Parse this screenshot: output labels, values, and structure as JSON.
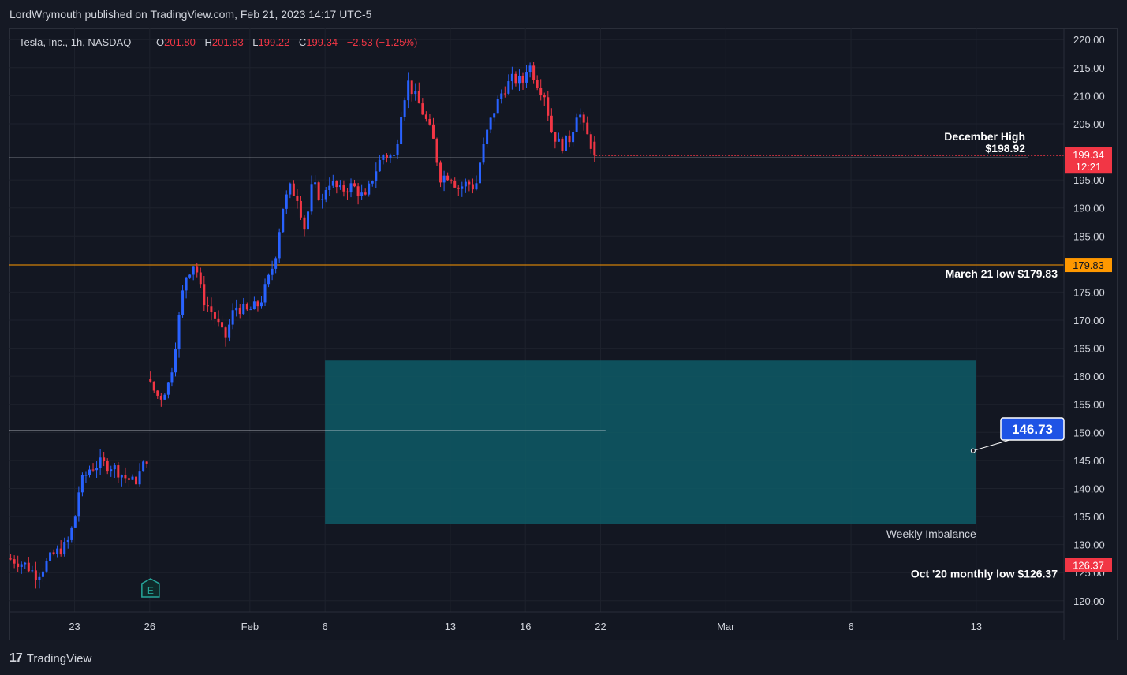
{
  "header": {
    "published": "LordWrymouth published on TradingView.com, Feb 21, 2023 14:17 UTC-5"
  },
  "footer": {
    "logo_mark": "17",
    "brand": "TradingView"
  },
  "colors": {
    "background": "#131722",
    "grid": "#1e222d",
    "up": "#2962ff",
    "down": "#f23645",
    "text": "#d1d4dc",
    "orange": "#ff9800",
    "box": "#0e5a66",
    "label_blue": "#1e53e5"
  },
  "chart_data": {
    "type": "candlestick",
    "legend": {
      "symbol": "Tesla, Inc., 1h, NASDAQ",
      "o_label": "O",
      "o_value": "201.80",
      "h_label": "H",
      "h_value": "201.83",
      "l_label": "L",
      "l_value": "199.22",
      "c_label": "C",
      "c_value": "199.34",
      "change": "−2.53 (−1.25%)"
    },
    "ylim": [
      118,
      222
    ],
    "y_ticks": [
      {
        "value": 220,
        "label": "220.00"
      },
      {
        "value": 215,
        "label": "215.00"
      },
      {
        "value": 210,
        "label": "210.00"
      },
      {
        "value": 205,
        "label": "205.00"
      },
      {
        "value": 195,
        "label": "195.00"
      },
      {
        "value": 190,
        "label": "190.00"
      },
      {
        "value": 185,
        "label": "185.00"
      },
      {
        "value": 175,
        "label": "175.00"
      },
      {
        "value": 170,
        "label": "170.00"
      },
      {
        "value": 165,
        "label": "165.00"
      },
      {
        "value": 160,
        "label": "160.00"
      },
      {
        "value": 155,
        "label": "155.00"
      },
      {
        "value": 150,
        "label": "150.00"
      },
      {
        "value": 145,
        "label": "145.00"
      },
      {
        "value": 140,
        "label": "140.00"
      },
      {
        "value": 135,
        "label": "135.00"
      },
      {
        "value": 130,
        "label": "130.00"
      },
      {
        "value": 125,
        "label": "125.00"
      },
      {
        "value": 120,
        "label": "120.00"
      }
    ],
    "x_ticks": [
      {
        "day": 0,
        "label": "23"
      },
      {
        "day": 3,
        "label": "26"
      },
      {
        "day": 7,
        "label": "Feb"
      },
      {
        "day": 10,
        "label": "6"
      },
      {
        "day": 15,
        "label": "13"
      },
      {
        "day": 18,
        "label": "16"
      },
      {
        "day": 21,
        "label": "22"
      },
      {
        "day": 26,
        "label": "Mar"
      },
      {
        "day": 31,
        "label": "6"
      },
      {
        "day": 36,
        "label": "13"
      }
    ],
    "x_range_days": [
      -2.6,
      39.5
    ],
    "candles_control": [
      [
        -2.6,
        127.5
      ],
      [
        -2.0,
        126.5
      ],
      [
        -1.5,
        124.5
      ],
      [
        -0.9,
        128.0
      ],
      [
        -0.3,
        130.0
      ],
      [
        0.0,
        134.5
      ],
      [
        0.2,
        140.5
      ],
      [
        0.6,
        143.5
      ],
      [
        1.0,
        144.5
      ],
      [
        1.5,
        144.0
      ],
      [
        2.0,
        142.0
      ],
      [
        2.4,
        141.0
      ],
      [
        2.9,
        145.5
      ],
      [
        3.0,
        158.5
      ],
      [
        3.4,
        156.0
      ],
      [
        3.8,
        159.0
      ],
      [
        4.0,
        165.0
      ],
      [
        4.4,
        177.5
      ],
      [
        4.8,
        180.5
      ],
      [
        5.1,
        174.0
      ],
      [
        5.6,
        170.5
      ],
      [
        6.0,
        166.5
      ],
      [
        6.4,
        172.5
      ],
      [
        6.9,
        171.5
      ],
      [
        7.4,
        173.0
      ],
      [
        7.8,
        178.0
      ],
      [
        8.0,
        181.0
      ],
      [
        8.3,
        190.0
      ],
      [
        8.6,
        193.5
      ],
      [
        8.9,
        192.0
      ],
      [
        9.2,
        186.0
      ],
      [
        9.5,
        194.5
      ],
      [
        9.9,
        191.0
      ],
      [
        10.1,
        195.0
      ],
      [
        10.6,
        193.0
      ],
      [
        11.1,
        194.0
      ],
      [
        11.6,
        191.5
      ],
      [
        11.9,
        195.5
      ],
      [
        12.3,
        199.5
      ],
      [
        12.8,
        199.0
      ],
      [
        13.0,
        206.5
      ],
      [
        13.3,
        212.5
      ],
      [
        13.7,
        209.0
      ],
      [
        14.0,
        206.0
      ],
      [
        14.3,
        202.5
      ],
      [
        14.6,
        195.5
      ],
      [
        15.0,
        196.0
      ],
      [
        15.3,
        193.5
      ],
      [
        15.7,
        194.5
      ],
      [
        16.0,
        193.5
      ],
      [
        16.2,
        198.5
      ],
      [
        16.5,
        204.0
      ],
      [
        16.8,
        208.0
      ],
      [
        17.1,
        211.0
      ],
      [
        17.5,
        213.0
      ],
      [
        17.9,
        212.5
      ],
      [
        18.1,
        216.0
      ],
      [
        18.5,
        212.0
      ],
      [
        18.8,
        210.0
      ],
      [
        19.0,
        204.0
      ],
      [
        19.4,
        201.0
      ],
      [
        19.8,
        202.5
      ],
      [
        20.1,
        208.0
      ],
      [
        20.3,
        204.5
      ],
      [
        20.6,
        201.5
      ],
      [
        20.8,
        199.34
      ]
    ],
    "levels": [
      {
        "name": "december-high",
        "price": 198.92,
        "label_line1": "December High",
        "label_line2": "$198.92",
        "color": "#d1d4dc"
      },
      {
        "name": "march-21-low",
        "price": 179.83,
        "label": "March 21 low $179.83",
        "badge": "179.83",
        "color": "#ff9800"
      },
      {
        "name": "oct20-monthly-low",
        "price": 126.37,
        "label": "Oct '20 monthly low $126.37",
        "badge": "126.37",
        "color": "#f23645"
      },
      {
        "name": "horizontal-white",
        "price": 150.3,
        "color": "#d1d4dc"
      }
    ],
    "current_price": {
      "value": "199.34",
      "countdown": "12:21",
      "price": 199.34
    },
    "zone": {
      "label": "Weekly Imbalance",
      "top": 162.8,
      "bottom": 133.6,
      "start_day": 10,
      "end_day": 36
    },
    "callout": {
      "value": "146.73",
      "price": 146.73
    },
    "earnings_marker": {
      "label": "E",
      "day": 3
    }
  }
}
